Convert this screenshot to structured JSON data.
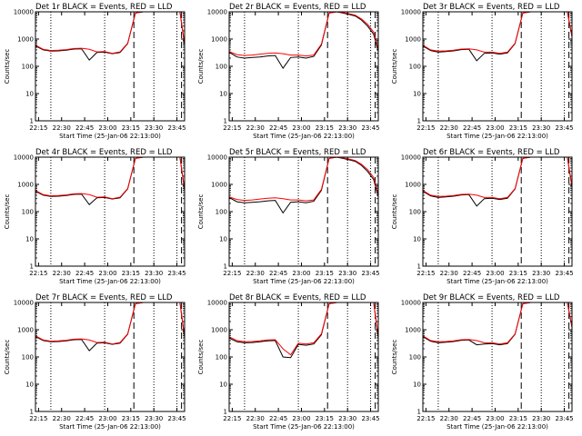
{
  "chart_data": [
    {
      "type": "line",
      "title": "Det 1r BLACK = Events, RED = LLD",
      "xlabel": "Start Time (25-Jan-06 22:13:00)",
      "ylabel": "Counts/sec",
      "yscale": "log",
      "ylim": [
        1,
        10000
      ],
      "xlim": [
        "22:13",
        "23:50"
      ],
      "x_ticks": [
        "22:15",
        "22:30",
        "22:45",
        "23:00",
        "23:15",
        "23:30",
        "23:45"
      ],
      "y_ticks": [
        "1",
        "10",
        "100",
        "1000",
        "10000"
      ],
      "dotted_lines": [
        "22:23",
        "22:58",
        "23:30",
        "23:45"
      ],
      "dashed_lines": [
        "23:17",
        "23:48"
      ],
      "x_minutes": [
        0,
        5,
        10,
        15,
        20,
        25,
        30,
        35,
        40,
        45,
        50,
        55,
        60,
        65,
        70,
        74,
        78,
        82,
        86,
        90,
        94,
        97
      ],
      "series": [
        {
          "color": "#000000",
          "values": [
            560,
            400,
            360,
            370,
            390,
            430,
            440,
            170,
            320,
            330,
            290,
            320,
            680,
            9000,
            10000,
            10000,
            10000,
            10000,
            10000,
            10000,
            10000,
            600
          ]
        },
        {
          "color": "#ff0000",
          "values": [
            600,
            420,
            380,
            390,
            410,
            450,
            460,
            420,
            340,
            350,
            300,
            340,
            700,
            9000,
            10000,
            10000,
            10000,
            10000,
            10000,
            10000,
            10000,
            650
          ]
        }
      ]
    },
    {
      "type": "line",
      "title": "Det 2r BLACK = Events, RED = LLD",
      "xlabel": "Start Time (25-Jan-06 22:13:00)",
      "ylabel": "Counts/sec",
      "yscale": "log",
      "ylim": [
        1,
        10000
      ],
      "xlim": [
        "22:13",
        "23:50"
      ],
      "x_ticks": [
        "22:15",
        "22:30",
        "22:45",
        "23:00",
        "23:15",
        "23:30",
        "23:45"
      ],
      "y_ticks": [
        "1",
        "10",
        "100",
        "1000",
        "10000"
      ],
      "dotted_lines": [
        "22:23",
        "22:58",
        "23:30",
        "23:45"
      ],
      "dashed_lines": [
        "23:17",
        "23:48"
      ],
      "x_minutes": [
        0,
        5,
        10,
        15,
        20,
        25,
        30,
        35,
        40,
        45,
        50,
        55,
        60,
        65,
        70,
        74,
        78,
        82,
        86,
        90,
        94,
        97
      ],
      "series": [
        {
          "color": "#000000",
          "values": [
            330,
            220,
            200,
            210,
            220,
            240,
            250,
            85,
            210,
            220,
            200,
            230,
            600,
            9000,
            10000,
            9000,
            8000,
            7000,
            5000,
            3000,
            1500,
            350
          ]
        },
        {
          "color": "#ff0000",
          "values": [
            350,
            270,
            250,
            260,
            280,
            300,
            310,
            290,
            260,
            260,
            240,
            260,
            650,
            9000,
            10000,
            9500,
            8500,
            7500,
            5500,
            3500,
            1800,
            400
          ]
        }
      ]
    },
    {
      "type": "line",
      "title": "Det 3r BLACK = Events, RED = LLD",
      "xlabel": "Start Time (25-Jan-06 22:13:00)",
      "ylabel": "Counts/sec",
      "yscale": "log",
      "ylim": [
        1,
        10000
      ],
      "xlim": [
        "22:13",
        "23:50"
      ],
      "x_ticks": [
        "22:15",
        "22:30",
        "22:45",
        "23:00",
        "23:15",
        "23:30",
        "23:45"
      ],
      "y_ticks": [
        "1",
        "10",
        "100",
        "1000",
        "10000"
      ],
      "dotted_lines": [
        "22:23",
        "22:58",
        "23:30",
        "23:45"
      ],
      "dashed_lines": [
        "23:17",
        "23:48"
      ],
      "x_minutes": [
        0,
        5,
        10,
        15,
        20,
        25,
        30,
        35,
        40,
        45,
        50,
        55,
        60,
        65,
        70,
        74,
        78,
        82,
        86,
        90,
        94,
        97
      ],
      "series": [
        {
          "color": "#000000",
          "values": [
            560,
            380,
            330,
            350,
            370,
            410,
            420,
            160,
            300,
            310,
            280,
            310,
            680,
            9000,
            10000,
            10000,
            10000,
            10000,
            10000,
            10000,
            10000,
            1200
          ]
        },
        {
          "color": "#ff0000",
          "values": [
            600,
            400,
            360,
            370,
            390,
            430,
            440,
            400,
            330,
            330,
            300,
            330,
            700,
            9000,
            10000,
            10000,
            10000,
            10000,
            10000,
            10000,
            10000,
            1300
          ]
        }
      ]
    },
    {
      "type": "line",
      "title": "Det 4r BLACK = Events, RED = LLD",
      "xlabel": "Start Time (25-Jan-06 22:13:00)",
      "ylabel": "Counts/sec",
      "yscale": "log",
      "ylim": [
        1,
        10000
      ],
      "xlim": [
        "22:13",
        "23:50"
      ],
      "x_ticks": [
        "22:15",
        "22:30",
        "22:45",
        "23:00",
        "23:15",
        "23:30",
        "23:45"
      ],
      "y_ticks": [
        "1",
        "10",
        "100",
        "1000",
        "10000"
      ],
      "dotted_lines": [
        "22:23",
        "22:58",
        "23:30",
        "23:45"
      ],
      "dashed_lines": [
        "23:17",
        "23:48"
      ],
      "x_minutes": [
        0,
        5,
        10,
        15,
        20,
        25,
        30,
        35,
        40,
        45,
        50,
        55,
        60,
        65,
        70,
        74,
        78,
        82,
        86,
        90,
        94,
        97
      ],
      "series": [
        {
          "color": "#000000",
          "values": [
            560,
            400,
            360,
            370,
            390,
            430,
            440,
            180,
            320,
            330,
            290,
            320,
            680,
            9000,
            10000,
            10000,
            10000,
            10000,
            10000,
            10000,
            10000,
            600
          ]
        },
        {
          "color": "#ff0000",
          "values": [
            600,
            420,
            380,
            390,
            410,
            450,
            460,
            420,
            340,
            350,
            300,
            340,
            700,
            9000,
            10000,
            10000,
            10000,
            10000,
            10000,
            10000,
            10000,
            650
          ]
        }
      ]
    },
    {
      "type": "line",
      "title": "Det 5r BLACK = Events, RED = LLD",
      "xlabel": "Start Time (25-Jan-06 22:13:00)",
      "ylabel": "Counts/sec",
      "yscale": "log",
      "ylim": [
        1,
        10000
      ],
      "xlim": [
        "22:13",
        "23:50"
      ],
      "x_ticks": [
        "22:15",
        "22:30",
        "22:45",
        "23:00",
        "23:15",
        "23:30",
        "23:45"
      ],
      "y_ticks": [
        "1",
        "10",
        "100",
        "1000",
        "10000"
      ],
      "dotted_lines": [
        "22:23",
        "22:58",
        "23:30",
        "23:45"
      ],
      "dashed_lines": [
        "23:17",
        "23:48"
      ],
      "x_minutes": [
        0,
        5,
        10,
        15,
        20,
        25,
        30,
        35,
        40,
        45,
        50,
        55,
        60,
        65,
        70,
        74,
        78,
        82,
        86,
        90,
        94,
        97
      ],
      "series": [
        {
          "color": "#000000",
          "values": [
            330,
            230,
            210,
            220,
            230,
            250,
            260,
            90,
            220,
            230,
            210,
            240,
            600,
            9000,
            10000,
            9000,
            8000,
            7000,
            5000,
            3000,
            1500,
            350
          ]
        },
        {
          "color": "#ff0000",
          "values": [
            350,
            280,
            260,
            270,
            290,
            310,
            320,
            300,
            270,
            270,
            250,
            270,
            650,
            9000,
            10000,
            9500,
            8500,
            7500,
            5500,
            3500,
            1800,
            400
          ]
        }
      ]
    },
    {
      "type": "line",
      "title": "Det 6r BLACK = Events, RED = LLD",
      "xlabel": "Start Time (25-Jan-06 22:13:00)",
      "ylabel": "Counts/sec",
      "yscale": "log",
      "ylim": [
        1,
        10000
      ],
      "xlim": [
        "22:13",
        "23:50"
      ],
      "x_ticks": [
        "22:15",
        "22:30",
        "22:45",
        "23:00",
        "23:15",
        "23:30",
        "23:45"
      ],
      "y_ticks": [
        "1",
        "10",
        "100",
        "1000",
        "10000"
      ],
      "dotted_lines": [
        "22:23",
        "22:58",
        "23:30",
        "23:45"
      ],
      "dashed_lines": [
        "23:17",
        "23:48"
      ],
      "x_minutes": [
        0,
        5,
        10,
        15,
        20,
        25,
        30,
        35,
        40,
        45,
        50,
        55,
        60,
        65,
        70,
        74,
        78,
        82,
        86,
        90,
        94,
        97
      ],
      "series": [
        {
          "color": "#000000",
          "values": [
            560,
            380,
            330,
            350,
            370,
            410,
            420,
            160,
            300,
            310,
            280,
            310,
            680,
            9000,
            10000,
            10000,
            10000,
            10000,
            10000,
            10000,
            10000,
            800
          ]
        },
        {
          "color": "#ff0000",
          "values": [
            600,
            400,
            360,
            370,
            390,
            430,
            440,
            400,
            330,
            330,
            300,
            330,
            700,
            9000,
            10000,
            10000,
            10000,
            10000,
            10000,
            10000,
            10000,
            850
          ]
        }
      ]
    },
    {
      "type": "line",
      "title": "Det 7r BLACK = Events, RED = LLD",
      "xlabel": "Start Time (25-Jan-06 22:13:00)",
      "ylabel": "Counts/sec",
      "yscale": "log",
      "ylim": [
        1,
        10000
      ],
      "xlim": [
        "22:13",
        "23:50"
      ],
      "x_ticks": [
        "22:15",
        "22:30",
        "22:45",
        "23:00",
        "23:15",
        "23:30",
        "23:45"
      ],
      "y_ticks": [
        "1",
        "10",
        "100",
        "1000",
        "10000"
      ],
      "dotted_lines": [
        "22:23",
        "22:58",
        "23:30",
        "23:45"
      ],
      "dashed_lines": [
        "23:17",
        "23:48"
      ],
      "x_minutes": [
        0,
        5,
        10,
        15,
        20,
        25,
        30,
        35,
        40,
        45,
        50,
        55,
        60,
        65,
        70,
        74,
        78,
        82,
        86,
        90,
        94,
        97
      ],
      "series": [
        {
          "color": "#000000",
          "values": [
            560,
            400,
            360,
            370,
            390,
            430,
            440,
            170,
            320,
            330,
            290,
            320,
            680,
            9000,
            10000,
            10000,
            10000,
            10000,
            10000,
            10000,
            10000,
            500
          ]
        },
        {
          "color": "#ff0000",
          "values": [
            600,
            420,
            380,
            390,
            410,
            450,
            460,
            420,
            340,
            350,
            300,
            340,
            700,
            9000,
            10000,
            10000,
            10000,
            10000,
            10000,
            10000,
            10000,
            550
          ]
        }
      ]
    },
    {
      "type": "line",
      "title": "Det 8r BLACK = Events, RED = LLD",
      "xlabel": "Start Time (25-Jan-06 22:13:00)",
      "ylabel": "Counts/sec",
      "yscale": "log",
      "ylim": [
        1,
        10000
      ],
      "xlim": [
        "22:13",
        "23:50"
      ],
      "x_ticks": [
        "22:15",
        "22:30",
        "22:45",
        "23:00",
        "23:15",
        "23:30",
        "23:45"
      ],
      "y_ticks": [
        "1",
        "10",
        "100",
        "1000",
        "10000"
      ],
      "dotted_lines": [
        "22:23",
        "22:58",
        "23:30",
        "23:45"
      ],
      "dashed_lines": [
        "23:17",
        "23:48"
      ],
      "x_minutes": [
        0,
        5,
        10,
        15,
        20,
        25,
        30,
        35,
        40,
        45,
        50,
        55,
        60,
        65,
        70,
        74,
        78,
        82,
        86,
        90,
        94,
        97
      ],
      "series": [
        {
          "color": "#000000",
          "values": [
            500,
            360,
            330,
            340,
            360,
            390,
            400,
            100,
            95,
            290,
            270,
            300,
            650,
            9000,
            10000,
            10000,
            10000,
            10000,
            10000,
            10000,
            10000,
            500
          ]
        },
        {
          "color": "#ff0000",
          "values": [
            550,
            400,
            360,
            370,
            390,
            420,
            430,
            200,
            120,
            320,
            300,
            330,
            700,
            9000,
            10000,
            10000,
            10000,
            10000,
            10000,
            10000,
            10000,
            550
          ]
        }
      ]
    },
    {
      "type": "line",
      "title": "Det 9r BLACK = Events, RED = LLD",
      "xlabel": "Start Time (25-Jan-06 22:13:00)",
      "ylabel": "Counts/sec",
      "yscale": "log",
      "ylim": [
        1,
        10000
      ],
      "xlim": [
        "22:13",
        "23:50"
      ],
      "x_ticks": [
        "22:15",
        "22:30",
        "22:45",
        "23:00",
        "23:15",
        "23:30",
        "23:45"
      ],
      "y_ticks": [
        "1",
        "10",
        "100",
        "1000",
        "10000"
      ],
      "dotted_lines": [
        "22:23",
        "22:58",
        "23:30",
        "23:45"
      ],
      "dashed_lines": [
        "23:17",
        "23:48"
      ],
      "x_minutes": [
        0,
        5,
        10,
        15,
        20,
        25,
        30,
        35,
        40,
        45,
        50,
        55,
        60,
        65,
        70,
        74,
        78,
        82,
        86,
        90,
        94,
        97
      ],
      "series": [
        {
          "color": "#000000",
          "values": [
            560,
            380,
            330,
            350,
            370,
            410,
            420,
            280,
            300,
            310,
            280,
            310,
            680,
            9000,
            10000,
            10000,
            10000,
            10000,
            10000,
            10000,
            10000,
            1200
          ]
        },
        {
          "color": "#ff0000",
          "values": [
            600,
            400,
            360,
            370,
            390,
            430,
            440,
            400,
            330,
            330,
            300,
            330,
            700,
            9000,
            10000,
            10000,
            10000,
            10000,
            10000,
            10000,
            10000,
            1300
          ]
        }
      ]
    }
  ]
}
